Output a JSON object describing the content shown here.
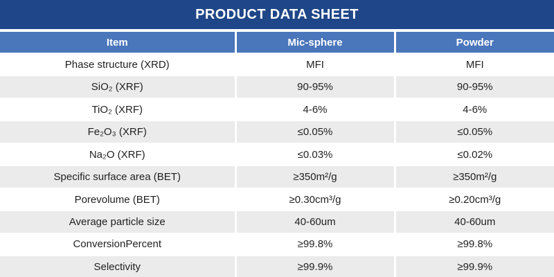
{
  "theme": {
    "banner_bg": "#1E4688",
    "header_bg": "#4A76BB",
    "row_alt_bg": "#EBEBEB",
    "text_color": "#1F1F1F"
  },
  "banner": {
    "title": "PRODUCT DATA SHEET"
  },
  "table": {
    "headers": {
      "item": "Item",
      "mic_sphere": "Mic-sphere",
      "powder": "Powder"
    },
    "rows": [
      {
        "item": "Phase structure (XRD)",
        "mic_sphere": "MFI",
        "powder": "MFI"
      },
      {
        "item": "SiO₂ (XRF)",
        "mic_sphere": "90-95%",
        "powder": "90-95%"
      },
      {
        "item": "TiO₂ (XRF)",
        "mic_sphere": "4-6%",
        "powder": "4-6%"
      },
      {
        "item": "Fe₂O₃ (XRF)",
        "mic_sphere": "≤0.05%",
        "powder": "≤0.05%"
      },
      {
        "item": "Na₂O (XRF)",
        "mic_sphere": "≤0.03%",
        "powder": "≤0.02%"
      },
      {
        "item": "Specific surface area (BET)",
        "mic_sphere": "≥350m²/g",
        "powder": "≥350m²/g"
      },
      {
        "item": "Porevolume (BET)",
        "mic_sphere": "≥0.30cm³/g",
        "powder": "≥0.20cm³/g"
      },
      {
        "item": "Average particle size",
        "mic_sphere": "40-60um",
        "powder": "40-60um"
      },
      {
        "item": "ConversionPercent",
        "mic_sphere": "≥99.8%",
        "powder": "≥99.8%"
      },
      {
        "item": "Selectivity",
        "mic_sphere": "≥99.9%",
        "powder": "≥99.9%"
      }
    ]
  }
}
